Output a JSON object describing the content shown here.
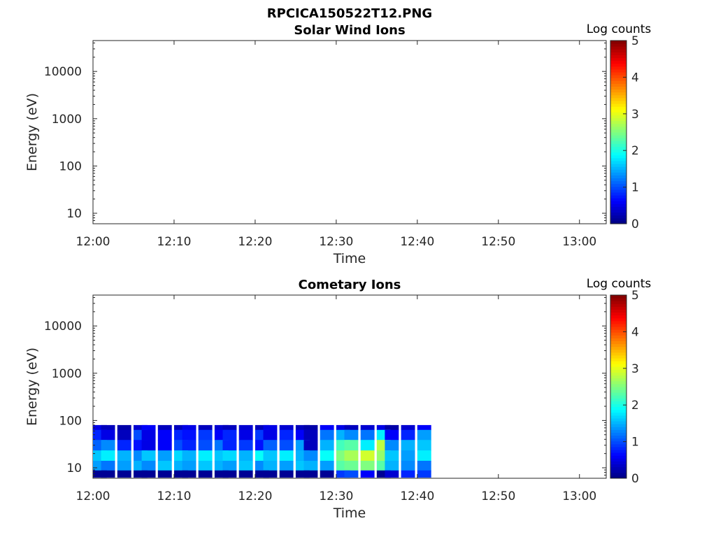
{
  "figure_title": "RPCICA150522T12.PNG",
  "chart_data": [
    {
      "type": "heatmap",
      "title": "Solar Wind Ions",
      "xlabel": "Time",
      "ylabel": "Energy (eV)",
      "y_scale": "log",
      "ylim": [
        6,
        45000
      ],
      "x_ticks": [
        "12:00",
        "12:10",
        "12:20",
        "12:30",
        "12:40",
        "12:50",
        "13:00"
      ],
      "y_ticks": [
        "10",
        "100",
        "1000",
        "10000"
      ],
      "colorbar": {
        "label": "Log counts",
        "ticks": [
          "0",
          "1",
          "2",
          "3",
          "4",
          "5"
        ],
        "range": [
          0,
          5
        ],
        "colormap": "jet"
      },
      "energy_bins": [],
      "time_bins": [],
      "values": []
    },
    {
      "type": "heatmap",
      "title": "Cometary Ions",
      "xlabel": "Time",
      "ylabel": "Energy (eV)",
      "y_scale": "log",
      "ylim": [
        6,
        45000
      ],
      "x_ticks": [
        "12:00",
        "12:10",
        "12:20",
        "12:30",
        "12:40",
        "12:50",
        "13:00"
      ],
      "y_ticks": [
        "10",
        "100",
        "1000",
        "10000"
      ],
      "colorbar": {
        "label": "Log counts",
        "ticks": [
          "0",
          "1",
          "2",
          "3",
          "4",
          "5"
        ],
        "range": [
          0,
          5
        ],
        "colormap": "jet"
      },
      "energy_bins": [
        80,
        50,
        30,
        18,
        11,
        7
      ],
      "time_bins": [
        "12:00",
        "12:01",
        "12:03",
        "12:05",
        "12:06",
        "12:08",
        "12:10",
        "12:11",
        "12:13",
        "12:15",
        "12:16",
        "12:18",
        "12:20",
        "12:21",
        "12:23",
        "12:25",
        "12:26",
        "12:28",
        "12:30",
        "12:31",
        "12:33",
        "12:35",
        "12:36",
        "12:38",
        "12:40"
      ],
      "values": [
        [
          0.5,
          0.3,
          0.2,
          0.4,
          0.6,
          0.3,
          0.3,
          0.5,
          0.3,
          0.4,
          0.3,
          0.4,
          0.3,
          0.5,
          0.4,
          0.3,
          0.2,
          0.6,
          0.5,
          0.3,
          0.4,
          0.5,
          0.2,
          0.4,
          0.6
        ],
        [
          0.8,
          0.5,
          0.3,
          1.0,
          0.5,
          0.6,
          0.8,
          0.7,
          0.9,
          0.6,
          0.8,
          0.5,
          0.9,
          0.5,
          0.8,
          0.6,
          0.3,
          1.2,
          1.5,
          1.3,
          1.2,
          1.8,
          0.6,
          0.8,
          1.4
        ],
        [
          1.1,
          1.3,
          0.8,
          0.7,
          0.5,
          0.6,
          1.0,
          0.8,
          1.0,
          1.2,
          0.8,
          0.9,
          0.7,
          1.1,
          1.0,
          1.4,
          0.3,
          1.5,
          2.2,
          2.3,
          1.8,
          2.8,
          1.3,
          1.5,
          1.6
        ],
        [
          1.6,
          1.8,
          1.5,
          1.3,
          1.6,
          1.4,
          1.7,
          1.5,
          1.8,
          1.6,
          1.7,
          1.5,
          1.9,
          1.6,
          1.8,
          1.5,
          1.3,
          1.9,
          2.5,
          2.7,
          2.9,
          2.6,
          1.6,
          1.4,
          1.8
        ],
        [
          1.4,
          1.2,
          1.4,
          1.5,
          1.3,
          1.6,
          1.5,
          1.4,
          1.6,
          1.5,
          1.4,
          1.6,
          1.3,
          1.5,
          1.4,
          1.6,
          1.5,
          1.4,
          2.3,
          2.4,
          2.5,
          2.3,
          1.5,
          1.3,
          1.2
        ],
        [
          0.1,
          0.1,
          0.1,
          0.1,
          0.1,
          0.1,
          0.1,
          0.1,
          0.1,
          0.1,
          0.1,
          0.1,
          0.1,
          0.1,
          0.1,
          0.1,
          0.1,
          0.1,
          0.9,
          1.0,
          0.6,
          0.1,
          0.4,
          0.8,
          0.9
        ]
      ]
    }
  ]
}
